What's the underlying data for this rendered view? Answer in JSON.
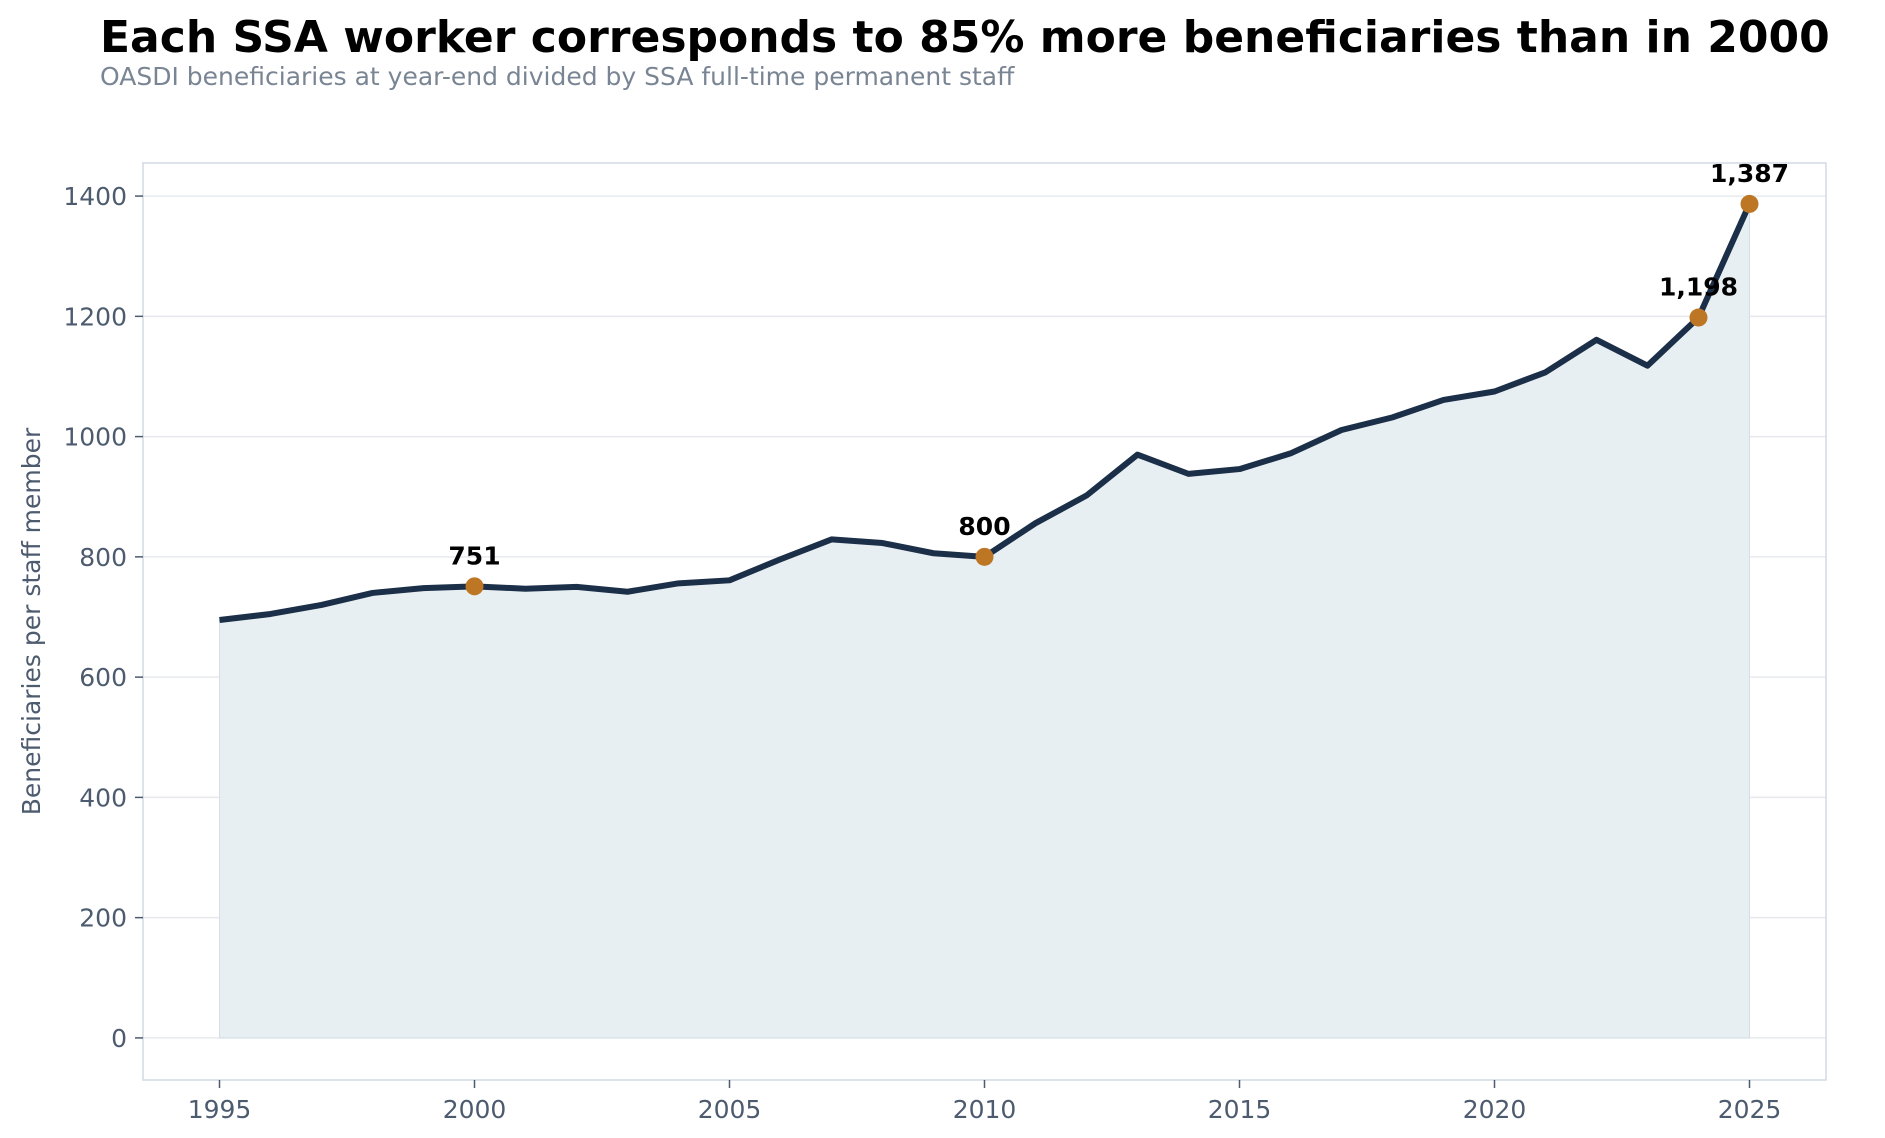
{
  "chart_data": {
    "type": "area",
    "title": "Each SSA worker corresponds to 85% more beneficiaries than in 2000",
    "subtitle": "OASDI beneficiaries at year-end divided by SSA full-time permanent staff",
    "xlabel": "",
    "ylabel": "Beneficiaries per staff member",
    "xlim": [
      1993.5,
      2026.5
    ],
    "ylim": [
      -70,
      1455
    ],
    "x_ticks": [
      1995,
      2000,
      2005,
      2010,
      2015,
      2020,
      2025
    ],
    "y_ticks": [
      0,
      200,
      400,
      600,
      800,
      1000,
      1200,
      1400
    ],
    "grid": "horizontal",
    "legend": "none",
    "colors": {
      "line": "#1b2f48",
      "fill": "#e8eff3",
      "marker": "#bd7623",
      "grid": "#e6e9ee",
      "frame": "#d3d8e2"
    },
    "series": [
      {
        "x": [
          1995,
          1996,
          1997,
          1998,
          1999,
          2000,
          2001,
          2002,
          2003,
          2004,
          2005,
          2006,
          2007,
          2008,
          2009,
          2010,
          2011,
          2012,
          2013,
          2014,
          2015,
          2016,
          2017,
          2018,
          2019,
          2020,
          2021,
          2022,
          2023,
          2024,
          2025
        ],
        "values": [
          695,
          705,
          720,
          740,
          748,
          751,
          747,
          750,
          742,
          756,
          761,
          796,
          829,
          823,
          806,
          800,
          856,
          902,
          970,
          938,
          946,
          972,
          1011,
          1032,
          1061,
          1075,
          1107,
          1161,
          1118,
          1198,
          1387
        ]
      }
    ],
    "highlights": [
      {
        "x": 2000,
        "y": 751,
        "label": "751"
      },
      {
        "x": 2010,
        "y": 800,
        "label": "800"
      },
      {
        "x": 2024,
        "y": 1198,
        "label": "1,198"
      },
      {
        "x": 2025,
        "y": 1387,
        "label": "1,387"
      }
    ]
  }
}
